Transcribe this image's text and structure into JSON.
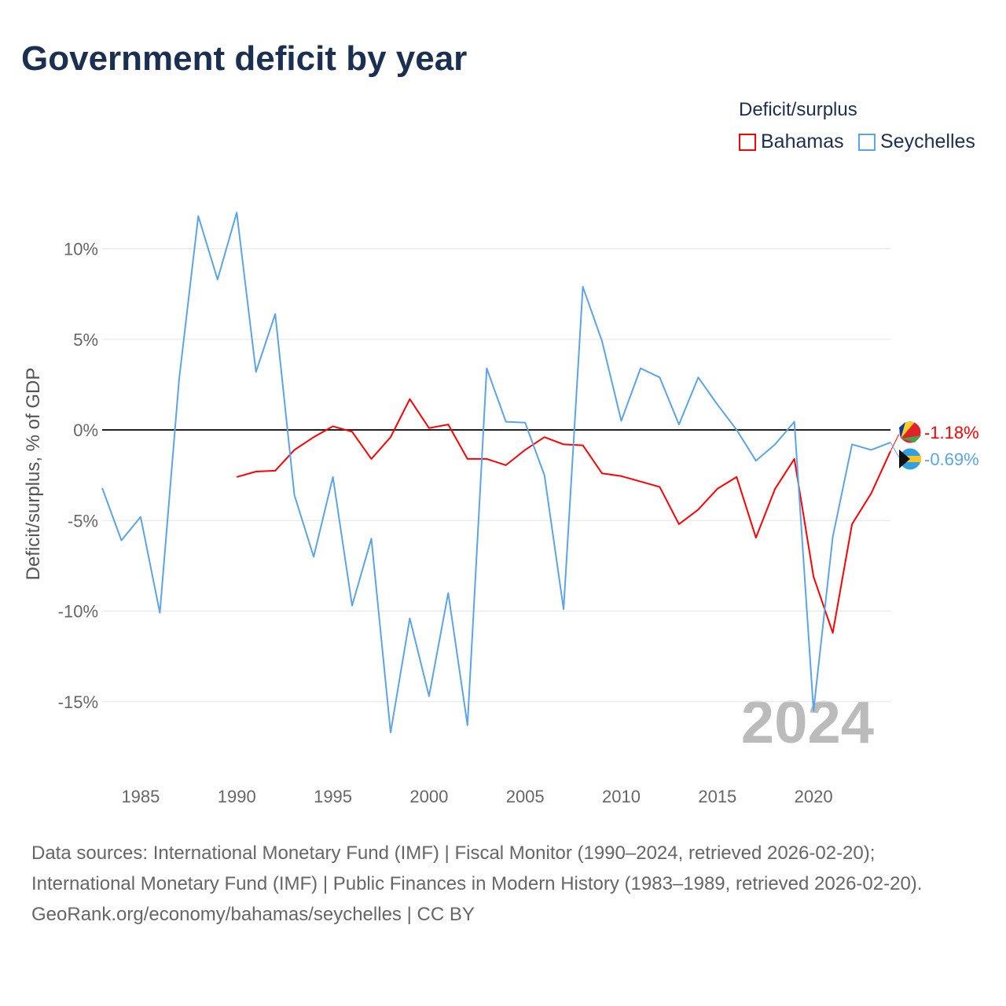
{
  "title": "Government deficit by year",
  "legend": {
    "title": "Deficit/surplus",
    "items": [
      {
        "name": "Bahamas",
        "color": "#ff0000"
      },
      {
        "name": "Seychelles",
        "color": "#5ba4ea"
      }
    ]
  },
  "year_label": "2024",
  "sources": {
    "line1": "Data sources: International Monetary Fund (IMF) | Fiscal Monitor (1990–2024, retrieved 2026-02-20); International Monetary Fund (IMF) | Public Finances in Modern History (1983–1989, retrieved 2026-02-20).",
    "line2": "GeoRank.org/economy/bahamas/seychelles | CC BY"
  },
  "chart_data": {
    "type": "line",
    "title": "Government deficit by year",
    "xlabel": "",
    "ylabel": "Deficit/surplus, % of GDP",
    "xlim": [
      1983,
      2024
    ],
    "ylim": [
      -18,
      13
    ],
    "x_ticks": [
      1985,
      1990,
      1995,
      2000,
      2005,
      2010,
      2015,
      2020
    ],
    "y_ticks": [
      {
        "v": 10,
        "label": "10%"
      },
      {
        "v": 5,
        "label": "5%"
      },
      {
        "v": 0,
        "label": "0%"
      },
      {
        "v": -5,
        "label": "-5%"
      },
      {
        "v": -10,
        "label": "-10%"
      },
      {
        "v": -15,
        "label": "-15%"
      }
    ],
    "series": [
      {
        "name": "Seychelles",
        "color": "#5ba4ea",
        "end_label": "-0.69%",
        "start": 1983,
        "values": [
          -3.2,
          -6.1,
          -4.8,
          -10.1,
          2.8,
          11.8,
          8.3,
          12.0,
          3.2,
          6.4,
          -3.6,
          -7.0,
          -2.6,
          -9.7,
          -6.0,
          -16.7,
          -10.4,
          -14.7,
          -9.0,
          -16.3,
          3.4,
          0.45,
          0.4,
          -2.5,
          -9.9,
          7.9,
          4.9,
          0.5,
          3.4,
          2.9,
          0.3,
          2.9,
          1.4,
          0.0,
          -1.7,
          -0.8,
          0.45,
          -15.5,
          -5.9,
          -0.8,
          -1.1,
          -0.69
        ]
      },
      {
        "name": "Bahamas",
        "color": "#ff0000",
        "end_label": "-1.18%",
        "start": 1990,
        "values": [
          -2.6,
          -2.3,
          -2.25,
          -1.1,
          -0.4,
          0.2,
          -0.1,
          -1.6,
          -0.4,
          1.7,
          0.1,
          0.3,
          -1.6,
          -1.6,
          -1.95,
          -1.1,
          -0.4,
          -0.8,
          -0.85,
          -2.4,
          -2.55,
          -2.85,
          -3.15,
          -5.2,
          -4.4,
          -3.25,
          -2.6,
          -5.95,
          -3.25,
          -1.6,
          -8.1,
          -11.2,
          -5.2,
          -3.5,
          -1.18
        ]
      }
    ]
  }
}
